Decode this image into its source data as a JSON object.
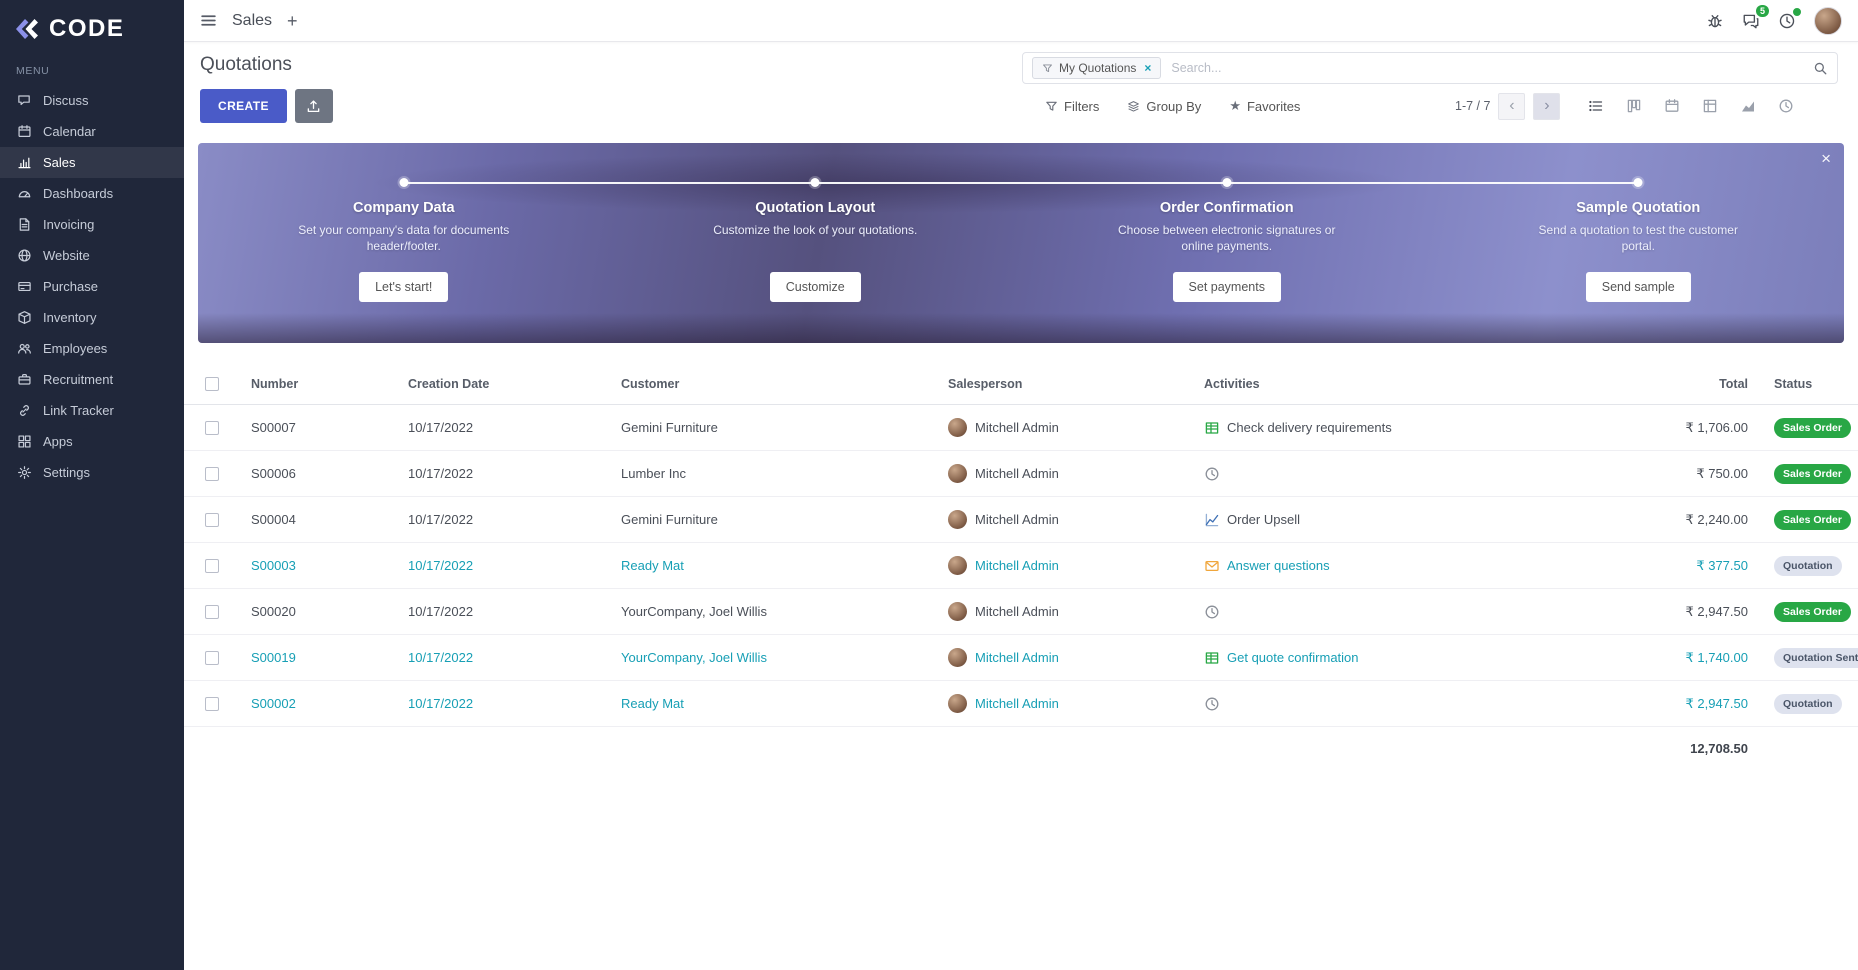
{
  "colors": {
    "primary": "#4a5bc8",
    "link": "#179fb5",
    "success": "#28a745",
    "banner_bg": "#6b6aa8",
    "sidebar_bg": "#20273a",
    "activity_table": "#28a745",
    "activity_envelope": "#f0a63c",
    "activity_chart": "#3d6fb4"
  },
  "brand": {
    "name": "CODE"
  },
  "sidebar": {
    "menu_label": "MENU",
    "items": [
      {
        "label": "Discuss",
        "icon": "discuss-icon"
      },
      {
        "label": "Calendar",
        "icon": "calendar-icon"
      },
      {
        "label": "Sales",
        "icon": "sales-icon",
        "active": true
      },
      {
        "label": "Dashboards",
        "icon": "dashboards-icon"
      },
      {
        "label": "Invoicing",
        "icon": "invoicing-icon"
      },
      {
        "label": "Website",
        "icon": "website-icon"
      },
      {
        "label": "Purchase",
        "icon": "purchase-icon"
      },
      {
        "label": "Inventory",
        "icon": "inventory-icon"
      },
      {
        "label": "Employees",
        "icon": "employees-icon"
      },
      {
        "label": "Recruitment",
        "icon": "recruitment-icon"
      },
      {
        "label": "Link Tracker",
        "icon": "link-icon"
      },
      {
        "label": "Apps",
        "icon": "apps-icon"
      },
      {
        "label": "Settings",
        "icon": "settings-icon"
      }
    ]
  },
  "topbar": {
    "app_name": "Sales",
    "messages_count": "5"
  },
  "control": {
    "title": "Quotations",
    "search": {
      "facet": "My Quotations",
      "placeholder": "Search...",
      "remove_label": "×"
    },
    "create_label": "CREATE",
    "filters_label": "Filters",
    "group_by_label": "Group By",
    "favorites_label": "Favorites",
    "pager": "1-7 / 7",
    "views": [
      {
        "name": "list",
        "icon": "list-view-icon",
        "active": true
      },
      {
        "name": "kanban",
        "icon": "kanban-view-icon"
      },
      {
        "name": "calendar",
        "icon": "calendar-view-icon"
      },
      {
        "name": "pivot",
        "icon": "pivot-view-icon"
      },
      {
        "name": "graph",
        "icon": "graph-view-icon"
      },
      {
        "name": "activity",
        "icon": "activity-view-icon"
      }
    ]
  },
  "banner": {
    "close_label": "×",
    "steps": [
      {
        "title": "Company Data",
        "desc": "Set your company's data for documents header/footer.",
        "button": "Let's start!"
      },
      {
        "title": "Quotation Layout",
        "desc": "Customize the look of your quotations.",
        "button": "Customize"
      },
      {
        "title": "Order Confirmation",
        "desc": "Choose between electronic signatures or online payments.",
        "button": "Set payments"
      },
      {
        "title": "Sample Quotation",
        "desc": "Send a quotation to test the customer portal.",
        "button": "Send sample"
      }
    ]
  },
  "table": {
    "headers": {
      "number": "Number",
      "creation_date": "Creation Date",
      "customer": "Customer",
      "salesperson": "Salesperson",
      "activities": "Activities",
      "total": "Total",
      "status": "Status"
    },
    "rows": [
      {
        "number": "S00007",
        "date": "10/17/2022",
        "customer": "Gemini Furniture",
        "salesperson": "Mitchell Admin",
        "activity": {
          "icon": "table-icon",
          "label": "Check delivery requirements"
        },
        "total": "₹ 1,706.00",
        "status": "Sales Order",
        "status_type": "success",
        "highlight": false
      },
      {
        "number": "S00006",
        "date": "10/17/2022",
        "customer": "Lumber Inc",
        "salesperson": "Mitchell Admin",
        "activity": {
          "icon": "clock-icon",
          "label": ""
        },
        "total": "₹ 750.00",
        "status": "Sales Order",
        "status_type": "success",
        "highlight": false
      },
      {
        "number": "S00004",
        "date": "10/17/2022",
        "customer": "Gemini Furniture",
        "salesperson": "Mitchell Admin",
        "activity": {
          "icon": "chart-icon",
          "label": "Order Upsell"
        },
        "total": "₹ 2,240.00",
        "status": "Sales Order",
        "status_type": "success",
        "highlight": false
      },
      {
        "number": "S00003",
        "date": "10/17/2022",
        "customer": "Ready Mat",
        "salesperson": "Mitchell Admin",
        "activity": {
          "icon": "envelope-icon",
          "label": "Answer questions"
        },
        "total": "₹ 377.50",
        "status": "Quotation",
        "status_type": "muted",
        "highlight": true
      },
      {
        "number": "S00020",
        "date": "10/17/2022",
        "customer": "YourCompany, Joel Willis",
        "salesperson": "Mitchell Admin",
        "activity": {
          "icon": "clock-icon",
          "label": ""
        },
        "total": "₹ 2,947.50",
        "status": "Sales Order",
        "status_type": "success",
        "highlight": false
      },
      {
        "number": "S00019",
        "date": "10/17/2022",
        "customer": "YourCompany, Joel Willis",
        "salesperson": "Mitchell Admin",
        "activity": {
          "icon": "table-icon",
          "label": "Get quote confirmation"
        },
        "total": "₹ 1,740.00",
        "status": "Quotation Sent",
        "status_type": "muted",
        "highlight": true
      },
      {
        "number": "S00002",
        "date": "10/17/2022",
        "customer": "Ready Mat",
        "salesperson": "Mitchell Admin",
        "activity": {
          "icon": "clock-icon",
          "label": ""
        },
        "total": "₹ 2,947.50",
        "status": "Quotation",
        "status_type": "muted",
        "highlight": true
      }
    ],
    "footer_total": "12,708.50"
  }
}
